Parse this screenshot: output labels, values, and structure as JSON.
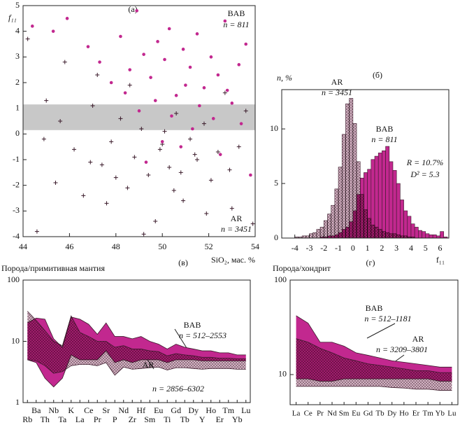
{
  "chart_data": [
    {
      "type": "scatter",
      "title": "(а)",
      "xlabel": "SiO₂, мас. %",
      "ylabel": "f₁₁",
      "xlim": [
        44,
        54
      ],
      "xticks": [
        44,
        46,
        48,
        50,
        52,
        54
      ],
      "ylim": [
        -4,
        5
      ],
      "yticks": [
        -4,
        -3,
        -2,
        -1,
        0,
        1,
        2,
        3,
        4,
        5
      ],
      "band_y": [
        0.15,
        1.15
      ],
      "series": [
        {
          "name": "BAB",
          "count_label": "n = 811",
          "color": "#c2288f",
          "marker": "circle",
          "x": [
            44.4,
            45.3,
            45.9,
            46.8,
            47.3,
            48.2,
            48.6,
            48.9,
            49.2,
            49.5,
            49.8,
            50.1,
            50.3,
            50.6,
            50.9,
            51.2,
            51.5,
            51.8,
            52.1,
            52.4,
            52.7,
            53.0,
            53.3,
            53.6,
            48.4,
            49.0,
            49.7,
            50.4,
            51.0,
            51.6,
            52.2,
            52.8,
            53.4,
            50.0,
            51.3,
            52.5,
            49.3,
            50.8,
            47.8,
            53.8
          ],
          "y": [
            4.2,
            4.0,
            4.5,
            3.4,
            2.8,
            3.8,
            2.5,
            4.8,
            3.1,
            2.2,
            3.6,
            2.9,
            4.1,
            1.5,
            3.3,
            2.6,
            3.9,
            1.8,
            3.0,
            2.3,
            4.4,
            1.2,
            2.7,
            3.5,
            1.6,
            0.9,
            1.3,
            0.7,
            1.9,
            1.1,
            0.6,
            1.7,
            0.4,
            -0.3,
            0.2,
            -0.8,
            -1.1,
            -0.5,
            2.0,
            -1.6
          ]
        },
        {
          "name": "AR",
          "count_label": "n = 3451",
          "color": "#3a1a2a",
          "marker": "plus",
          "x": [
            44.2,
            44.6,
            45.0,
            45.4,
            45.8,
            46.2,
            46.6,
            47.0,
            47.4,
            47.8,
            48.2,
            48.5,
            48.8,
            49.1,
            49.4,
            49.7,
            50.0,
            50.3,
            50.6,
            50.9,
            51.2,
            51.5,
            51.8,
            52.1,
            52.4,
            52.7,
            53.0,
            53.3,
            53.6,
            53.9,
            49.2,
            50.1,
            50.8,
            48.6,
            51.4,
            47.6,
            52.9,
            45.6,
            46.9,
            44.9,
            49.9,
            50.5,
            48.0,
            51.9,
            47.2
          ],
          "y": [
            3.7,
            -3.8,
            1.3,
            -1.9,
            2.8,
            -0.6,
            -2.4,
            1.1,
            -1.2,
            -0.3,
            0.6,
            -2.1,
            -0.9,
            0.2,
            -1.6,
            -3.4,
            -0.4,
            -1.3,
            0.8,
            -2.6,
            -0.2,
            -1.0,
            0.4,
            -1.8,
            -0.7,
            1.6,
            -2.9,
            -0.5,
            0.9,
            -3.5,
            -3.9,
            0.1,
            -1.5,
            1.9,
            -0.8,
            -2.7,
            -1.4,
            0.5,
            -1.1,
            -0.2,
            -0.6,
            -2.2,
            -1.7,
            -3.1,
            2.3
          ]
        }
      ]
    },
    {
      "type": "histogram",
      "title": "(б)",
      "xlabel": "f₁₁",
      "ylabel": "n, %",
      "xlim": [
        -4.9,
        6.6
      ],
      "xticks": [
        -4,
        -3,
        -2,
        -1,
        0,
        1,
        2,
        3,
        4,
        5,
        6
      ],
      "ylim": [
        0,
        13.6
      ],
      "yticks": [
        0,
        5,
        10
      ],
      "bins": [
        -4,
        -3.75,
        -3.5,
        -3.25,
        -3,
        -2.75,
        -2.5,
        -2.25,
        -2,
        -1.75,
        -1.5,
        -1.25,
        -1,
        -0.75,
        -0.5,
        -0.25,
        0,
        0.25,
        0.5,
        0.75,
        1,
        1.25,
        1.5,
        1.75,
        2,
        2.25,
        2.5,
        2.75,
        3,
        3.25,
        3.5,
        3.75,
        4,
        4.25,
        4.5,
        4.75,
        5,
        5.25,
        5.5,
        5.75,
        6,
        6.25,
        6.5
      ],
      "annotations": [
        "R = 10.7%",
        "D² = 5.3"
      ],
      "series": [
        {
          "name": "BAB",
          "count_label": "n = 811",
          "color": "#c2288f",
          "values": [
            0,
            0,
            0,
            0,
            0,
            0,
            0,
            0.1,
            0.1,
            0.2,
            0.2,
            0.3,
            0.5,
            0.8,
            1.0,
            1.5,
            2.5,
            4.0,
            5.5,
            6.0,
            6.3,
            7.2,
            7.5,
            7.8,
            8.0,
            8.4,
            7.0,
            6.2,
            5.0,
            3.5,
            2.5,
            2.0,
            1.3,
            1.0,
            0.7,
            0.6,
            0.4,
            0.3,
            0.3,
            0.2,
            0.6,
            0.1
          ]
        },
        {
          "name": "AR",
          "count_label": "n = 3451",
          "color": "#d9b4c8",
          "values": [
            0.1,
            0.1,
            0.2,
            0.2,
            0.4,
            0.5,
            0.8,
            1.0,
            1.6,
            2.2,
            3.0,
            4.5,
            6.5,
            9.5,
            12.3,
            12.8,
            10.5,
            7.0,
            4.0,
            2.6,
            1.8,
            1.2,
            1.0,
            0.8,
            0.6,
            0.5,
            0.4,
            0.4,
            0.3,
            0.2,
            0.2,
            0.1,
            0.1,
            0,
            0,
            0,
            0,
            0,
            0,
            0,
            0,
            0
          ]
        }
      ]
    },
    {
      "type": "band",
      "title": "(в)",
      "ylabel": "Порода/примитивная мантия",
      "log": true,
      "ylim": [
        1,
        100
      ],
      "yticks": [
        1,
        10,
        100
      ],
      "categories": [
        "Rb",
        "Ba",
        "Th",
        "Nb",
        "Ta",
        "K",
        "La",
        "Ce",
        "Pr",
        "Sr",
        "P",
        "Nd",
        "Zr",
        "Hf",
        "Sm",
        "Eu",
        "Ti",
        "Gd",
        "Tb",
        "Dy",
        "Y",
        "Ho",
        "Er",
        "Tm",
        "Yb",
        "Lu"
      ],
      "series": [
        {
          "name": "BAB",
          "count_label": "n = 512–2553",
          "color": "#c2288f",
          "upper": [
            20,
            24,
            23,
            11,
            8,
            25,
            23,
            19,
            13,
            20,
            12,
            12,
            11,
            12,
            10,
            9,
            7.5,
            9,
            8,
            7.5,
            7,
            7,
            6.5,
            6.5,
            6,
            6
          ],
          "lower": [
            5,
            4.5,
            2.5,
            1.8,
            2.5,
            6,
            5,
            5,
            5,
            7,
            4.5,
            5,
            4.5,
            5,
            5,
            5,
            4.5,
            5,
            5,
            5,
            4.8,
            4.8,
            4.8,
            4.8,
            4.8,
            4.8
          ]
        },
        {
          "name": "AR",
          "count_label": "n = 2856–6302",
          "color": "#d9b4c8",
          "upper": [
            31,
            22,
            15,
            10,
            8.5,
            26,
            14,
            12,
            10,
            10,
            8,
            8.5,
            7.5,
            7.5,
            7,
            6.8,
            5.8,
            6.3,
            6,
            5.8,
            5.5,
            5.5,
            5.3,
            5.3,
            5.2,
            5.2
          ],
          "lower": [
            5,
            4.8,
            4,
            3,
            3.2,
            4,
            4.2,
            4.2,
            4,
            4.5,
            2.8,
            3.8,
            3.5,
            3.6,
            3.7,
            3.8,
            3.4,
            3.7,
            3.7,
            3.6,
            3.5,
            3.6,
            3.6,
            3.6,
            3.5,
            3.5
          ]
        }
      ]
    },
    {
      "type": "band",
      "title": "(г)",
      "ylabel": "Порода/хондрит",
      "log": true,
      "ylim": [
        4.8,
        100
      ],
      "yticks": [
        10,
        100
      ],
      "categories": [
        "La",
        "Ce",
        "Pr",
        "Nd",
        "Sm",
        "Eu",
        "Gd",
        "Tb",
        "Dy",
        "Ho",
        "Er",
        "Tm",
        "Yb",
        "Lu"
      ],
      "series": [
        {
          "name": "BAB",
          "count_label": "n = 512–1181",
          "color": "#c2288f",
          "upper": [
            42,
            35,
            22,
            22,
            20,
            17,
            16,
            15,
            14,
            13.5,
            13,
            12.5,
            12,
            12
          ],
          "lower": [
            9,
            9,
            8.5,
            8.5,
            9,
            9,
            9,
            9,
            9,
            9,
            9,
            9,
            8.5,
            8.5
          ]
        },
        {
          "name": "AR",
          "count_label": "n = 3209–3801",
          "color": "#d9b4c8",
          "upper": [
            24,
            22,
            19,
            17,
            15,
            14,
            13,
            12.5,
            12,
            11.5,
            11,
            11,
            10.5,
            10.5
          ],
          "lower": [
            7.5,
            7.5,
            7.5,
            7.5,
            7.5,
            7.5,
            7.5,
            7.5,
            7.3,
            7.2,
            7,
            7,
            6.8,
            6.8
          ]
        }
      ]
    }
  ]
}
